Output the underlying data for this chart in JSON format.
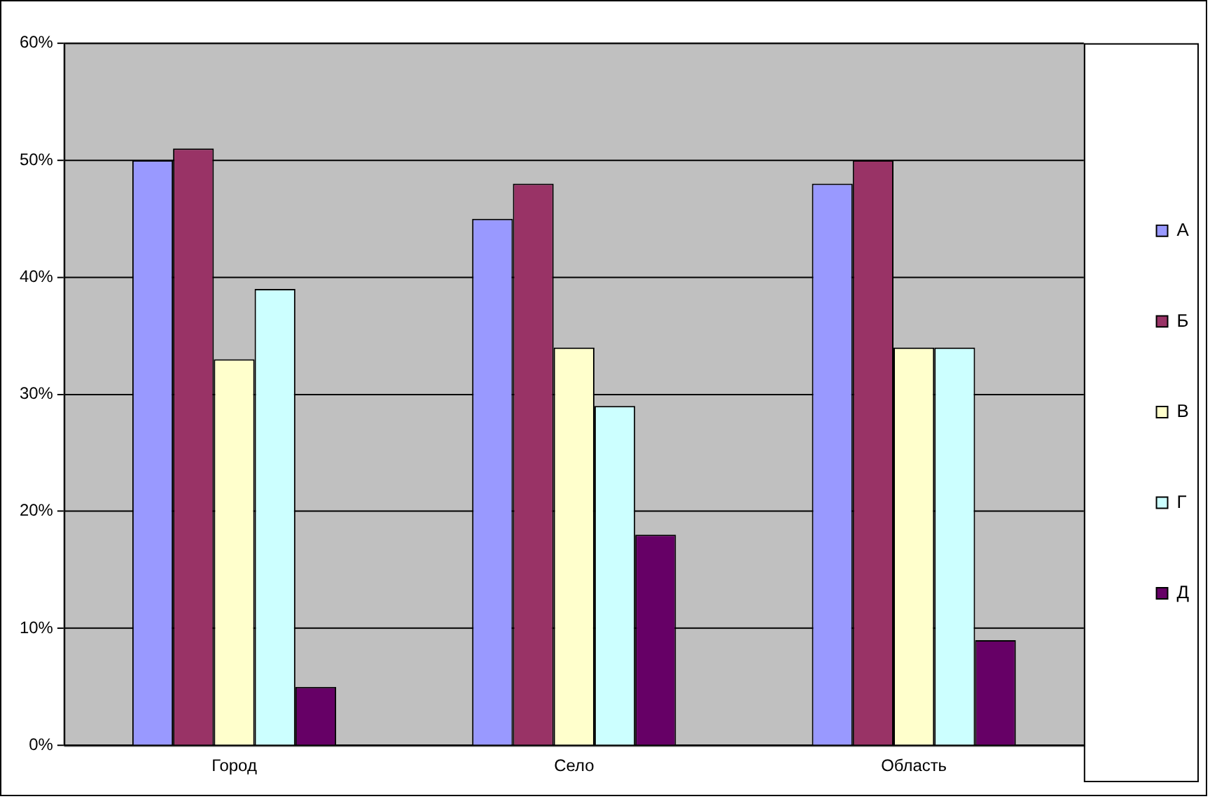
{
  "chart_data": {
    "type": "bar",
    "categories": [
      "Город",
      "Село",
      "Область"
    ],
    "series": [
      {
        "name": "А",
        "color": "#9999ff",
        "values": [
          50,
          45,
          48
        ]
      },
      {
        "name": "Б",
        "color": "#993366",
        "values": [
          51,
          48,
          50
        ]
      },
      {
        "name": "В",
        "color": "#ffffcc",
        "values": [
          33,
          34,
          34
        ]
      },
      {
        "name": "Г",
        "color": "#ccffff",
        "values": [
          39,
          29,
          34
        ]
      },
      {
        "name": "Д",
        "color": "#660066",
        "values": [
          5,
          18,
          9
        ]
      }
    ],
    "ylim": [
      0,
      60
    ],
    "yticks": [
      {
        "value": 0,
        "label": "0%"
      },
      {
        "value": 10,
        "label": "10%"
      },
      {
        "value": 20,
        "label": "20%"
      },
      {
        "value": 30,
        "label": "30%"
      },
      {
        "value": 40,
        "label": "40%"
      },
      {
        "value": 50,
        "label": "50%"
      },
      {
        "value": 60,
        "label": "60%"
      }
    ],
    "grid": "y",
    "legend": "right"
  }
}
